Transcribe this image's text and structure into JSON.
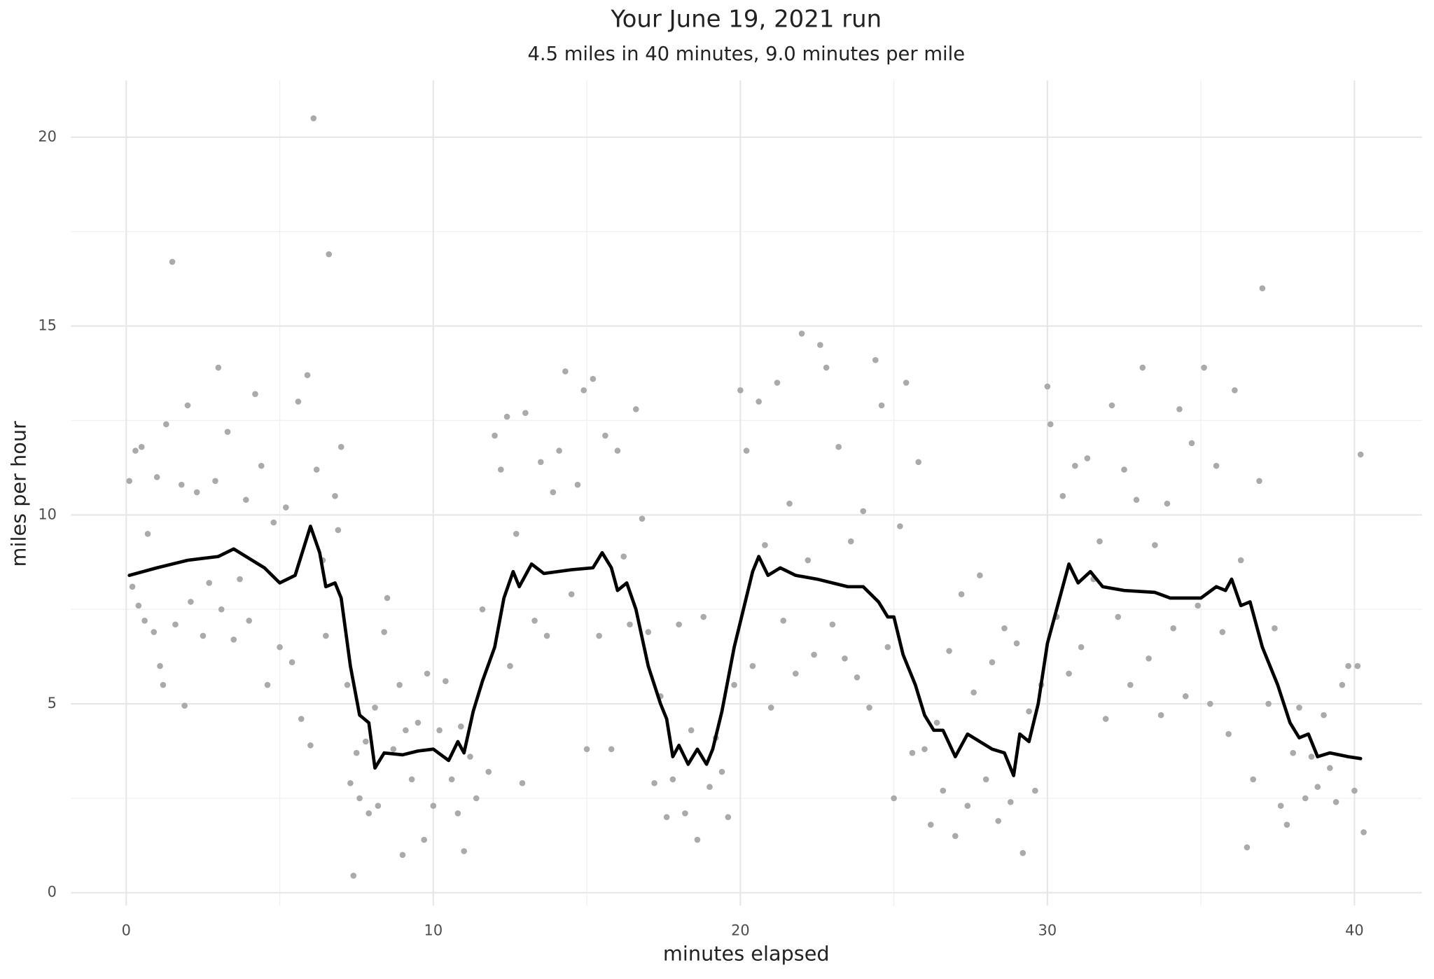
{
  "chart_data": {
    "type": "scatter",
    "title": "Your June 19, 2021 run",
    "subtitle": "4.5 miles in 40 minutes, 9.0 minutes per mile",
    "x_label": "minutes elapsed",
    "y_label": "miles per hour",
    "xlim": [
      -1.8,
      42.2
    ],
    "ylim": [
      -0.34,
      21.5
    ],
    "xticks": [
      0,
      10,
      20,
      30,
      40
    ],
    "yticks": [
      0,
      5,
      10,
      15,
      20
    ],
    "xminor": [
      5,
      15,
      25,
      35
    ],
    "yminor": [
      2.5,
      7.5,
      12.5,
      17.5
    ],
    "grid": true,
    "series": [
      {
        "type": "scatter",
        "color": "#aaaaaa",
        "x": [
          0.1,
          0.2,
          0.3,
          0.4,
          0.5,
          0.6,
          0.7,
          0.9,
          1,
          1.1,
          1.2,
          1.3,
          1.5,
          1.6,
          1.8,
          1.9,
          2,
          2.1,
          2.3,
          2.5,
          2.7,
          2.9,
          3,
          3.1,
          3.3,
          3.5,
          3.7,
          3.9,
          4,
          4.2,
          4.4,
          4.6,
          4.8,
          5,
          5.2,
          5.4,
          5.6,
          5.7,
          5.9,
          6,
          6.1,
          6.2,
          6.4,
          6.5,
          6.6,
          6.8,
          6.9,
          7,
          7.2,
          7.3,
          7.4,
          7.5,
          7.6,
          7.8,
          7.9,
          8.1,
          8.2,
          8.4,
          8.5,
          8.7,
          8.9,
          9,
          9.1,
          9.3,
          9.5,
          9.7,
          9.8,
          10,
          10.2,
          10.4,
          10.6,
          10.8,
          10.9,
          11,
          11.2,
          11.4,
          11.6,
          11.8,
          12,
          12.2,
          12.4,
          12.5,
          12.7,
          12.9,
          13,
          13.3,
          13.5,
          13.7,
          13.9,
          14.1,
          14.3,
          14.5,
          14.7,
          14.9,
          15,
          15.2,
          15.4,
          15.6,
          15.8,
          16,
          16.2,
          16.4,
          16.6,
          16.8,
          17,
          17.2,
          17.4,
          17.6,
          17.8,
          18,
          18.2,
          18.4,
          18.6,
          18.8,
          19,
          19.2,
          19.4,
          19.6,
          19.8,
          20,
          20.2,
          20.4,
          20.6,
          20.8,
          21,
          21.2,
          21.4,
          21.6,
          21.8,
          22,
          22.2,
          22.4,
          22.6,
          22.8,
          23,
          23.2,
          23.4,
          23.6,
          23.8,
          24,
          24.2,
          24.4,
          24.6,
          24.8,
          25,
          25.2,
          25.4,
          25.6,
          25.8,
          26,
          26.2,
          26.4,
          26.6,
          26.8,
          27,
          27.2,
          27.4,
          27.6,
          27.8,
          28,
          28.2,
          28.4,
          28.6,
          28.8,
          29,
          29.2,
          29.4,
          29.6,
          29.8,
          30,
          30.1,
          30.3,
          30.5,
          30.7,
          30.9,
          31.1,
          31.3,
          31.5,
          31.7,
          31.9,
          32.1,
          32.3,
          32.5,
          32.7,
          32.9,
          33.1,
          33.3,
          33.5,
          33.7,
          33.9,
          34.1,
          34.3,
          34.5,
          34.7,
          34.9,
          35.1,
          35.3,
          35.5,
          35.7,
          35.9,
          36.1,
          36.3,
          36.5,
          36.7,
          36.9,
          37,
          37.2,
          37.4,
          37.6,
          37.8,
          38,
          38.2,
          38.4,
          38.6,
          38.8,
          39,
          39.2,
          39.4,
          39.6,
          39.8,
          40,
          40.1,
          40.2,
          40.3
        ],
        "values": [
          10.9,
          8.1,
          11.7,
          7.6,
          11.8,
          7.2,
          9.5,
          6.9,
          11,
          6,
          5.5,
          12.4,
          16.7,
          7.1,
          10.8,
          4.95,
          12.9,
          7.7,
          10.6,
          6.8,
          8.2,
          10.9,
          13.9,
          7.5,
          12.2,
          6.7,
          8.3,
          10.4,
          7.2,
          13.2,
          11.3,
          5.5,
          9.8,
          6.5,
          10.2,
          6.1,
          13,
          4.6,
          13.7,
          3.9,
          20.5,
          11.2,
          8.8,
          6.8,
          16.9,
          10.5,
          9.6,
          11.8,
          5.5,
          2.9,
          0.45,
          3.7,
          2.5,
          4,
          2.1,
          4.9,
          2.3,
          6.9,
          7.8,
          3.8,
          5.5,
          1,
          4.3,
          3,
          4.5,
          1.4,
          5.8,
          2.3,
          4.3,
          5.6,
          3,
          2.1,
          4.4,
          1.1,
          3.6,
          2.5,
          7.5,
          3.2,
          12.1,
          11.2,
          12.6,
          6,
          9.5,
          2.9,
          12.7,
          7.2,
          11.4,
          6.8,
          10.6,
          11.7,
          13.8,
          7.9,
          10.8,
          13.3,
          3.8,
          13.6,
          6.8,
          12.1,
          3.8,
          11.7,
          8.9,
          7.1,
          12.8,
          9.9,
          6.9,
          2.9,
          5.2,
          2,
          3,
          7.1,
          2.1,
          4.3,
          1.4,
          7.3,
          2.8,
          4.1,
          3.2,
          2,
          5.5,
          13.3,
          11.7,
          6,
          13,
          9.2,
          4.9,
          13.5,
          7.2,
          10.3,
          5.8,
          14.8,
          8.8,
          6.3,
          14.5,
          13.9,
          7.1,
          11.8,
          6.2,
          9.3,
          5.7,
          10.1,
          4.9,
          14.1,
          12.9,
          6.5,
          2.5,
          9.7,
          13.5,
          3.7,
          11.4,
          3.8,
          1.8,
          4.5,
          2.7,
          6.4,
          1.5,
          7.9,
          2.3,
          5.3,
          8.4,
          3,
          6.1,
          1.9,
          7,
          2.4,
          6.6,
          1.05,
          4.8,
          2.7,
          5.5,
          13.4,
          12.4,
          7.3,
          10.5,
          5.8,
          11.3,
          6.5,
          11.5,
          8.3,
          9.3,
          4.6,
          12.9,
          7.3,
          11.2,
          5.5,
          10.4,
          13.9,
          6.2,
          9.2,
          4.7,
          10.3,
          7,
          12.8,
          5.2,
          11.9,
          7.6,
          13.9,
          5,
          11.3,
          6.9,
          4.2,
          13.3,
          8.8,
          1.2,
          3,
          10.9,
          16,
          5,
          7,
          2.3,
          1.8,
          3.7,
          4.9,
          2.5,
          3.6,
          2.8,
          4.7,
          3.3,
          2.4,
          5.5,
          6,
          2.7,
          6,
          11.6,
          1.6
        ]
      },
      {
        "type": "line",
        "color": "#000000",
        "x": [
          0.1,
          1,
          2,
          2.5,
          3,
          3.5,
          4,
          4.5,
          5,
          5.5,
          6,
          6.3,
          6.5,
          6.8,
          7,
          7.3,
          7.6,
          7.9,
          8.1,
          8.4,
          9,
          9.5,
          10,
          10.5,
          10.8,
          11,
          11.3,
          11.6,
          12,
          12.3,
          12.6,
          12.8,
          13.2,
          13.6,
          14.5,
          15.2,
          15.5,
          15.8,
          16,
          16.3,
          16.6,
          17,
          17.4,
          17.6,
          17.8,
          18,
          18.3,
          18.6,
          18.9,
          19.1,
          19.4,
          19.8,
          20.1,
          20.4,
          20.6,
          20.9,
          21.3,
          21.8,
          22.5,
          23.5,
          24,
          24.5,
          24.8,
          25,
          25.3,
          25.7,
          26,
          26.3,
          26.6,
          27,
          27.4,
          27.8,
          28.2,
          28.6,
          28.9,
          29.1,
          29.4,
          29.7,
          30,
          30.4,
          30.7,
          31,
          31.4,
          31.8,
          32.5,
          33.5,
          34,
          35,
          35.5,
          35.8,
          36,
          36.3,
          36.6,
          37,
          37.5,
          37.9,
          38.2,
          38.5,
          38.8,
          39.2,
          39.8,
          40.2
        ],
        "values": [
          8.4,
          8.6,
          8.8,
          8.85,
          8.9,
          9.1,
          8.85,
          8.6,
          8.2,
          8.4,
          9.7,
          9,
          8.1,
          8.2,
          7.8,
          6,
          4.7,
          4.5,
          3.3,
          3.7,
          3.65,
          3.75,
          3.8,
          3.5,
          4,
          3.7,
          4.8,
          5.6,
          6.5,
          7.8,
          8.5,
          8.1,
          8.7,
          8.45,
          8.55,
          8.6,
          9,
          8.6,
          8,
          8.2,
          7.5,
          6,
          5,
          4.6,
          3.6,
          3.9,
          3.4,
          3.8,
          3.4,
          3.8,
          4.8,
          6.5,
          7.5,
          8.5,
          8.9,
          8.4,
          8.6,
          8.4,
          8.3,
          8.1,
          8.1,
          7.7,
          7.3,
          7.3,
          6.3,
          5.5,
          4.7,
          4.3,
          4.3,
          3.6,
          4.2,
          4,
          3.8,
          3.7,
          3.1,
          4.2,
          4,
          5,
          6.6,
          7.8,
          8.7,
          8.2,
          8.5,
          8.1,
          8,
          7.95,
          7.8,
          7.8,
          8.1,
          8,
          8.3,
          7.6,
          7.7,
          6.5,
          5.5,
          4.5,
          4.1,
          4.2,
          3.6,
          3.7,
          3.6,
          3.55
        ]
      }
    ]
  }
}
